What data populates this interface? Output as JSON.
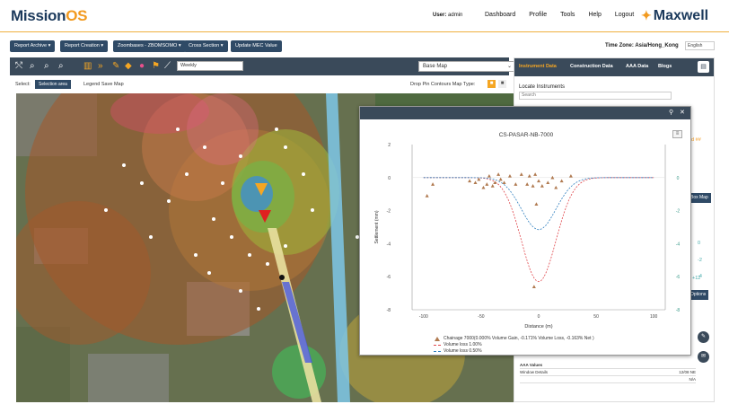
{
  "brand": {
    "name_a": "Mission",
    "name_b": "OS",
    "partner": "Maxwell"
  },
  "nav": {
    "user_label": "User:",
    "user_name": "admin",
    "links": [
      "Dashboard",
      "Profile",
      "Tools",
      "Help",
      "Logout"
    ]
  },
  "toolbar": {
    "buttons": [
      "Report Archive ▾",
      "Report Creation ▾",
      "Zoombases - ZBOMSOMO ▾",
      "Cross Section ▾",
      "Update MEC Value"
    ],
    "timezone": "Time Zone: Asia/Hong_Kong",
    "language": "English"
  },
  "maptools": {
    "period": "Weekly",
    "basemap": "Base Map"
  },
  "selectrow": {
    "select_label": "Select:",
    "selection_value": "Selection area",
    "legend_link": "Legend Save Map",
    "right_text": "Drop Pin   Contours   Map Type:"
  },
  "right_panel": {
    "tabs": [
      "Instrument Data",
      "Construction Data",
      "AAA Data",
      "Blogs"
    ],
    "locate_title": "Locate Instruments",
    "search_placeholder": "Search",
    "side_button": "Box Map",
    "options_button": "Options",
    "side_values": [
      "ed ##",
      "0",
      "-2",
      "-4",
      "-6",
      "+12"
    ],
    "table_header": "AAA Values",
    "table_rows": [
      [
        "Window Details",
        "12/08 NE"
      ],
      [
        "",
        "N/A"
      ]
    ]
  },
  "popup": {
    "title": "CS-PASAR-NB-7000"
  },
  "chart_data": {
    "type": "line",
    "title": "CS-PASAR-NB-7000",
    "xlabel": "Distance (m)",
    "ylabel": "Settlement (mm)",
    "xlim": [
      -110,
      110
    ],
    "ylim": [
      -8,
      2
    ],
    "x_ticks": [
      "-100",
      "-50",
      "0",
      "50",
      "100"
    ],
    "y_ticks": [
      "2",
      "0",
      "-2",
      "-4",
      "-6",
      "-8"
    ],
    "y2_ticks": [
      "0",
      "-2",
      "-4",
      "-6",
      "-8"
    ],
    "series": [
      {
        "name": "Chainage 7000(0.000% Volume Gain, -0.171% Volume Loss, -0.163% Net )",
        "kind": "scatter",
        "color": "#b07a50",
        "points": [
          [
            -97,
            -1.1
          ],
          [
            -92,
            -0.4
          ],
          [
            -60,
            -0.2
          ],
          [
            -55,
            -0.3
          ],
          [
            -52,
            -0.1
          ],
          [
            -48,
            -0.6
          ],
          [
            -45,
            -0.4
          ],
          [
            -43,
            0.1
          ],
          [
            -40,
            -0.5
          ],
          [
            -38,
            -0.3
          ],
          [
            -35,
            0.2
          ],
          [
            -33,
            -0.1
          ],
          [
            -30,
            -0.3
          ],
          [
            -25,
            0.1
          ],
          [
            -20,
            -0.4
          ],
          [
            -15,
            0.2
          ],
          [
            -10,
            -0.4
          ],
          [
            -8,
            0.1
          ],
          [
            -5,
            -0.5
          ],
          [
            -3,
            0.2
          ],
          [
            0,
            -0.2
          ],
          [
            3,
            -0.5
          ],
          [
            -4,
            -6.6
          ],
          [
            -2,
            -1.6
          ],
          [
            8,
            -0.3
          ],
          [
            12,
            0.0
          ],
          [
            15,
            -0.6
          ],
          [
            20,
            -0.2
          ],
          [
            28,
            0.1
          ]
        ]
      },
      {
        "name": "Volume loss 1.00%",
        "kind": "line",
        "color": "#e0474c",
        "depth": -6.3,
        "width": 15
      },
      {
        "name": "Volume loss 0.50%",
        "kind": "line",
        "color": "#2f7fbf",
        "depth": -3.15,
        "width": 15
      }
    ],
    "grid": false,
    "legend": "bottom"
  },
  "colors": {
    "accent": "#f29a1f",
    "navy": "#2f4a66",
    "dark": "#3a4a5a"
  }
}
